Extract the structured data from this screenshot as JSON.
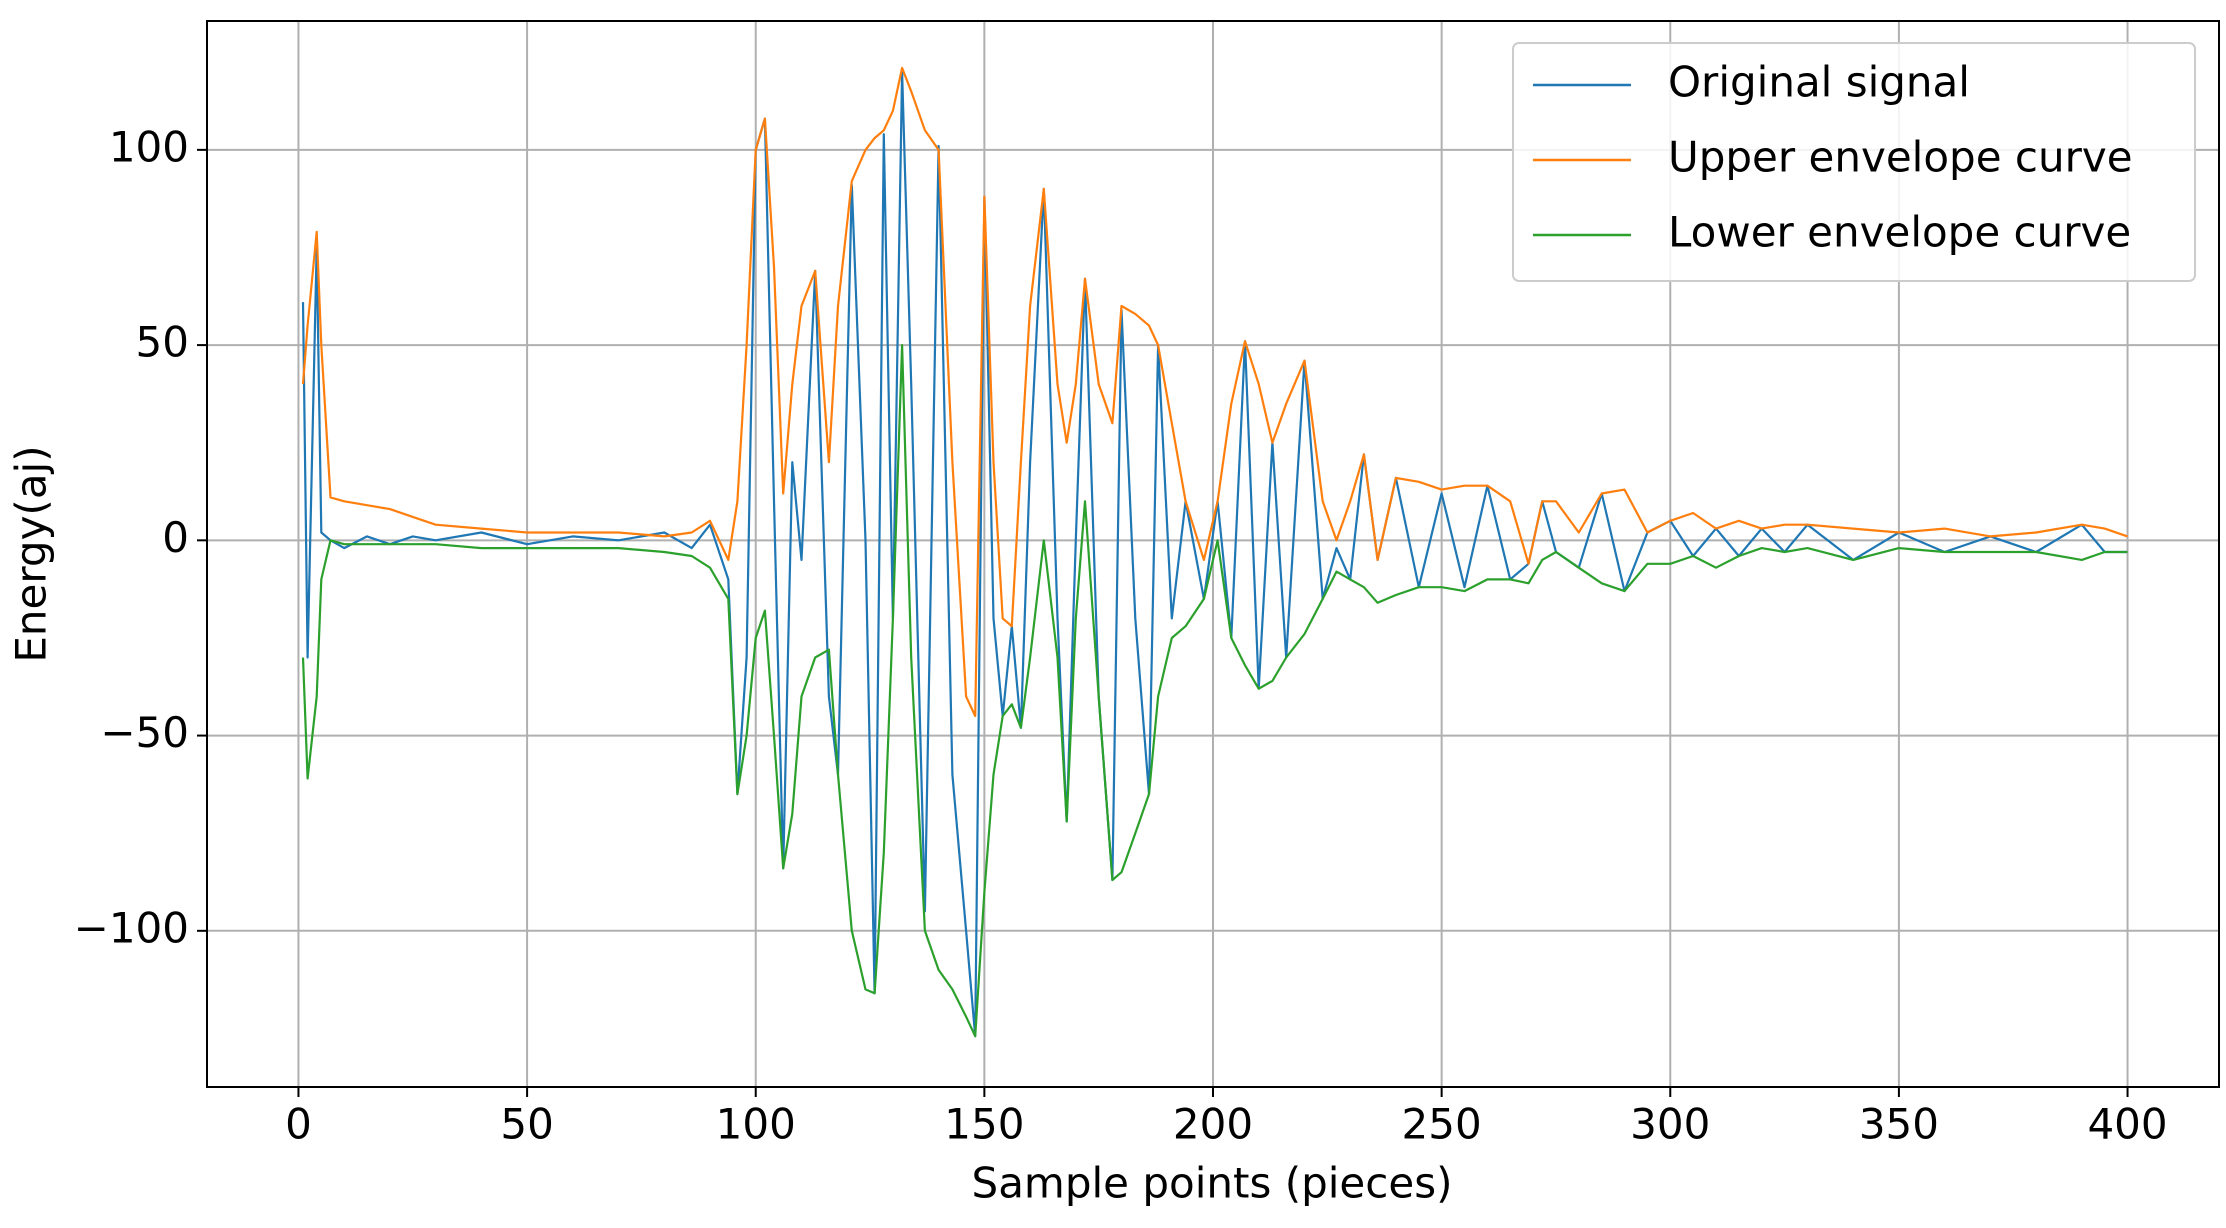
{
  "chart_data": {
    "type": "line",
    "xlabel": "Sample points (pieces)",
    "ylabel": "Energy(aj)",
    "x": [
      1,
      2,
      4,
      5,
      7,
      10,
      15,
      20,
      25,
      30,
      40,
      50,
      60,
      70,
      80,
      86,
      90,
      94,
      96,
      98,
      100,
      102,
      104,
      106,
      108,
      110,
      113,
      116,
      118,
      121,
      124,
      126,
      128,
      130,
      132,
      134,
      137,
      140,
      143,
      146,
      148,
      150,
      152,
      154,
      156,
      158,
      160,
      163,
      166,
      168,
      170,
      172,
      175,
      178,
      180,
      183,
      186,
      188,
      191,
      194,
      198,
      201,
      204,
      207,
      210,
      213,
      216,
      220,
      224,
      227,
      230,
      233,
      236,
      240,
      245,
      250,
      255,
      260,
      265,
      269,
      272,
      275,
      280,
      285,
      290,
      295,
      300,
      305,
      310,
      315,
      320,
      325,
      330,
      340,
      350,
      360,
      370,
      380,
      390,
      395,
      400
    ],
    "series": [
      {
        "name": "Original signal",
        "color": "#1f77b4",
        "values": [
          61,
          -30,
          75,
          2,
          0,
          -2,
          1,
          -1,
          1,
          0,
          2,
          -1,
          1,
          0,
          2,
          -2,
          4,
          -10,
          -65,
          -30,
          100,
          108,
          10,
          -84,
          20,
          -5,
          69,
          -40,
          -60,
          91,
          0,
          -116,
          104,
          -20,
          120,
          40,
          -95,
          101,
          -60,
          -100,
          -127,
          88,
          -20,
          -45,
          -22,
          -48,
          20,
          90,
          -20,
          -72,
          0,
          67,
          -40,
          -87,
          59,
          -20,
          -65,
          50,
          -20,
          10,
          -15,
          10,
          -25,
          51,
          -38,
          25,
          -30,
          46,
          -15,
          -2,
          -10,
          22,
          -5,
          16,
          -12,
          12,
          -12,
          14,
          -10,
          -6,
          10,
          -3,
          -7,
          12,
          -13,
          2,
          5,
          -4,
          3,
          -4,
          3,
          -3,
          4,
          -5,
          2,
          -3,
          1,
          -3,
          4,
          -3,
          -3
        ]
      },
      {
        "name": "Upper envelope curve",
        "color": "#ff7f0e",
        "values": [
          40,
          55,
          79,
          50,
          11,
          10,
          9,
          8,
          6,
          4,
          3,
          2,
          2,
          2,
          1,
          2,
          5,
          -5,
          10,
          50,
          100,
          108,
          70,
          12,
          40,
          60,
          69,
          20,
          60,
          92,
          100,
          103,
          105,
          110,
          121,
          115,
          105,
          100,
          20,
          -40,
          -45,
          88,
          20,
          -20,
          -22,
          20,
          60,
          90,
          40,
          25,
          40,
          67,
          40,
          30,
          60,
          58,
          55,
          50,
          30,
          10,
          -5,
          10,
          35,
          51,
          40,
          25,
          35,
          46,
          10,
          0,
          10,
          22,
          -5,
          16,
          15,
          13,
          14,
          14,
          10,
          -6,
          10,
          10,
          2,
          12,
          13,
          2,
          5,
          7,
          3,
          5,
          3,
          4,
          4,
          3,
          2,
          3,
          1,
          2,
          4,
          3,
          1
        ]
      },
      {
        "name": "Lower envelope curve",
        "color": "#2ca02c",
        "values": [
          -30,
          -61,
          -40,
          -10,
          0,
          -1,
          -1,
          -1,
          -1,
          -1,
          -2,
          -2,
          -2,
          -2,
          -3,
          -4,
          -7,
          -15,
          -65,
          -50,
          -25,
          -18,
          -50,
          -84,
          -70,
          -40,
          -30,
          -28,
          -60,
          -100,
          -115,
          -116,
          -80,
          -20,
          50,
          -30,
          -100,
          -110,
          -115,
          -122,
          -127,
          -90,
          -60,
          -45,
          -42,
          -48,
          -30,
          0,
          -30,
          -72,
          -20,
          10,
          -40,
          -87,
          -85,
          -75,
          -65,
          -40,
          -25,
          -22,
          -15,
          0,
          -25,
          -32,
          -38,
          -36,
          -30,
          -24,
          -15,
          -8,
          -10,
          -12,
          -16,
          -14,
          -12,
          -12,
          -13,
          -10,
          -10,
          -11,
          -5,
          -3,
          -7,
          -11,
          -13,
          -6,
          -6,
          -4,
          -7,
          -4,
          -2,
          -3,
          -2,
          -5,
          -2,
          -3,
          -3,
          -3,
          -5,
          -3,
          -3
        ]
      }
    ],
    "xlim": [
      -20,
      420
    ],
    "ylim": [
      -140,
      133
    ],
    "xticks": [
      0,
      50,
      100,
      150,
      200,
      250,
      300,
      350,
      400
    ],
    "yticks": [
      {
        "value": -100,
        "label": "−100"
      },
      {
        "value": -50,
        "label": "−50"
      },
      0,
      50,
      100
    ],
    "grid": true,
    "legend": "upper right"
  }
}
